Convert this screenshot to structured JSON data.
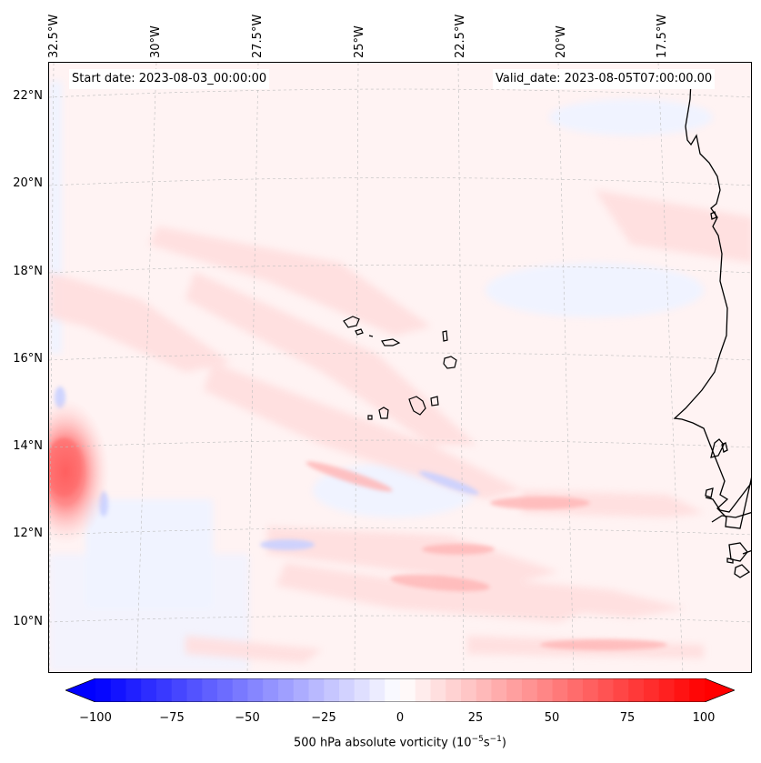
{
  "header": {
    "start_date": "Start date: 2023-08-03_00:00:00",
    "valid_date": "Valid_date: 2023-08-05T07:00:00.00"
  },
  "longitude_ticks": [
    "32.5°W",
    "30°W",
    "27.5°W",
    "25°W",
    "22.5°W",
    "20°W",
    "17.5°W"
  ],
  "latitude_ticks": [
    "22°N",
    "20°N",
    "18°N",
    "16°N",
    "14°N",
    "12°N",
    "10°N"
  ],
  "colorbar": {
    "label_prefix": "500 hPa absolute vorticity (10",
    "label_exp1": "−5",
    "label_mid": "s",
    "label_exp2": "−1",
    "label_suffix": ")",
    "ticks": [
      "−100",
      "−75",
      "−50",
      "−25",
      "0",
      "25",
      "50",
      "75",
      "100"
    ],
    "min": -100,
    "max": 100,
    "step": 5,
    "extend": "both",
    "colormap": "bwr",
    "low_color": "#0000ff",
    "mid_color": "#ffffff",
    "high_color": "#ff0000"
  }
}
